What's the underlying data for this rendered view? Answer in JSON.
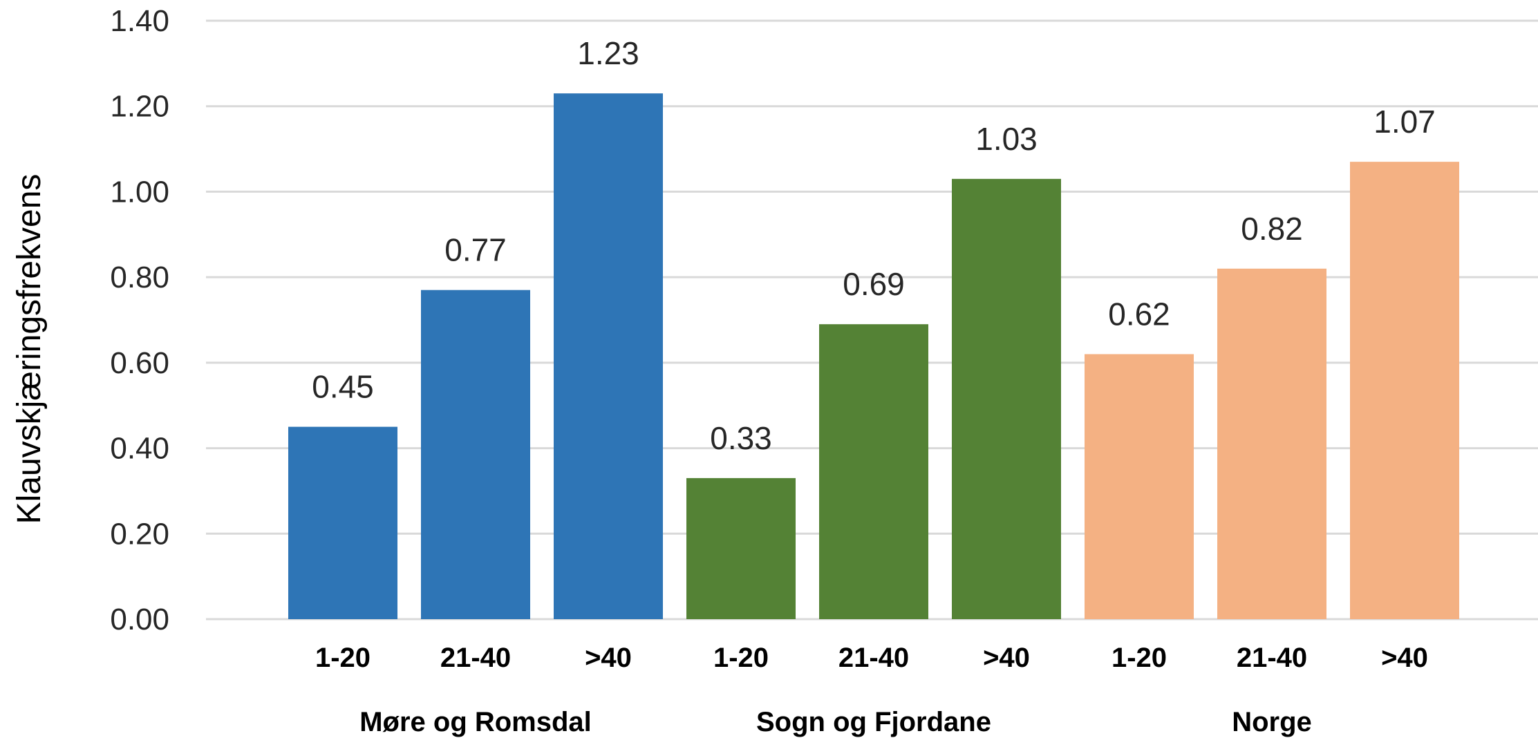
{
  "chart_data": {
    "type": "bar",
    "ylabel": "Klauvskjæringsfrekvens",
    "xlabel": "",
    "ylim": [
      0,
      1.4
    ],
    "y_ticks": [
      "0.00",
      "0.20",
      "0.40",
      "0.60",
      "0.80",
      "1.00",
      "1.20",
      "1.40"
    ],
    "grid": true,
    "legend": "none",
    "groups": [
      {
        "name": "Møre og Romsdal",
        "color": "#2E75B6",
        "categories": [
          "1-20",
          "21-40",
          ">40"
        ],
        "values": [
          0.45,
          0.77,
          1.23
        ],
        "labels": [
          "0.45",
          "0.77",
          "1.23"
        ]
      },
      {
        "name": "Sogn og Fjordane",
        "color": "#548235",
        "categories": [
          "1-20",
          "21-40",
          ">40"
        ],
        "values": [
          0.33,
          0.69,
          1.03
        ],
        "labels": [
          "0.33",
          "0.69",
          "1.03"
        ]
      },
      {
        "name": "Norge",
        "color": "#F4B183",
        "categories": [
          "1-20",
          "21-40",
          ">40"
        ],
        "values": [
          0.62,
          0.82,
          1.07
        ],
        "labels": [
          "0.62",
          "0.82",
          "1.07"
        ]
      }
    ]
  }
}
